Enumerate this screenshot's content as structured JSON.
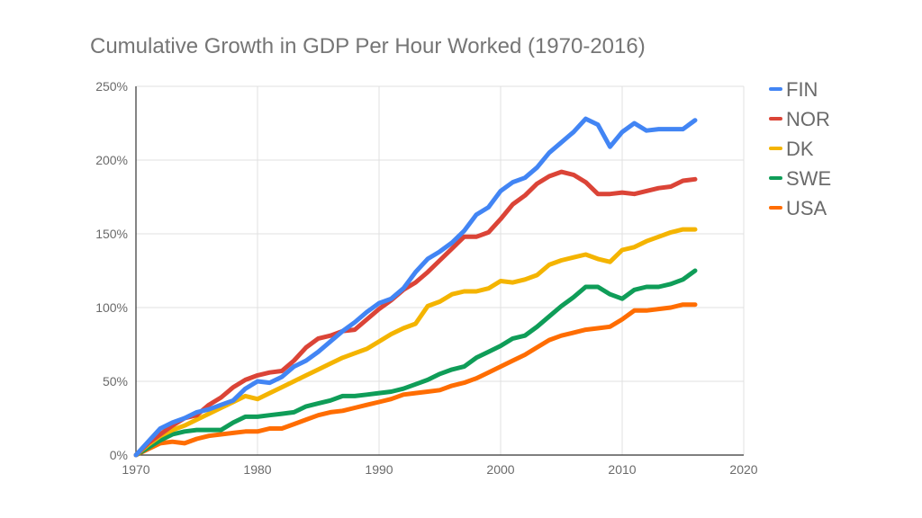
{
  "chart_data": {
    "type": "line",
    "title": "Cumulative Growth in GDP Per Hour Worked (1970-2016)",
    "xlabel": "",
    "ylabel": "",
    "xlim": [
      1970,
      2020
    ],
    "ylim": [
      0,
      250
    ],
    "x_ticks": [
      1970,
      1980,
      1990,
      2000,
      2010,
      2020
    ],
    "y_ticks": [
      0,
      50,
      100,
      150,
      200,
      250
    ],
    "y_tick_labels": [
      "0%",
      "50%",
      "100%",
      "150%",
      "200%",
      "250%"
    ],
    "grid": true,
    "legend_position": "right",
    "x": [
      1970,
      1971,
      1972,
      1973,
      1974,
      1975,
      1976,
      1977,
      1978,
      1979,
      1980,
      1981,
      1982,
      1983,
      1984,
      1985,
      1986,
      1987,
      1988,
      1989,
      1990,
      1991,
      1992,
      1993,
      1994,
      1995,
      1996,
      1997,
      1998,
      1999,
      2000,
      2001,
      2002,
      2003,
      2004,
      2005,
      2006,
      2007,
      2008,
      2009,
      2010,
      2011,
      2012,
      2013,
      2014,
      2015,
      2016
    ],
    "series": [
      {
        "name": "FIN",
        "color": "#4285F4",
        "values": [
          0,
          9,
          18,
          22,
          25,
          29,
          31,
          34,
          37,
          45,
          50,
          49,
          53,
          60,
          64,
          70,
          77,
          84,
          90,
          97,
          103,
          106,
          113,
          124,
          133,
          138,
          144,
          152,
          163,
          168,
          179,
          185,
          188,
          195,
          205,
          212,
          219,
          228,
          224,
          209,
          219,
          225,
          220,
          221,
          221,
          221,
          227
        ]
      },
      {
        "name": "NOR",
        "color": "#DB4437",
        "values": [
          0,
          8,
          14,
          20,
          25,
          27,
          34,
          39,
          46,
          51,
          54,
          56,
          57,
          64,
          73,
          79,
          81,
          84,
          85,
          92,
          99,
          105,
          112,
          117,
          124,
          132,
          140,
          148,
          148,
          151,
          160,
          170,
          176,
          184,
          189,
          192,
          190,
          185,
          177,
          177,
          178,
          177,
          179,
          181,
          182,
          186,
          187
        ]
      },
      {
        "name": "DK",
        "color": "#F4B400",
        "values": [
          0,
          7,
          13,
          17,
          20,
          24,
          28,
          32,
          36,
          40,
          38,
          42,
          46,
          50,
          54,
          58,
          62,
          66,
          69,
          72,
          77,
          82,
          86,
          89,
          101,
          104,
          109,
          111,
          111,
          113,
          118,
          117,
          119,
          122,
          129,
          132,
          134,
          136,
          133,
          131,
          139,
          141,
          145,
          148,
          151,
          153,
          153
        ]
      },
      {
        "name": "SWE",
        "color": "#0F9D58",
        "values": [
          0,
          5,
          10,
          14,
          16,
          17,
          17,
          17,
          22,
          26,
          26,
          27,
          28,
          29,
          33,
          35,
          37,
          40,
          40,
          41,
          42,
          43,
          45,
          48,
          51,
          55,
          58,
          60,
          66,
          70,
          74,
          79,
          81,
          87,
          94,
          101,
          107,
          114,
          114,
          109,
          106,
          112,
          114,
          114,
          116,
          119,
          125
        ]
      },
      {
        "name": "USA",
        "color": "#FF6D01",
        "values": [
          0,
          4,
          8,
          9,
          8,
          11,
          13,
          14,
          15,
          16,
          16,
          18,
          18,
          21,
          24,
          27,
          29,
          30,
          32,
          34,
          36,
          38,
          41,
          42,
          43,
          44,
          47,
          49,
          52,
          56,
          60,
          64,
          68,
          73,
          78,
          81,
          83,
          85,
          86,
          87,
          92,
          98,
          98,
          99,
          100,
          102,
          102
        ]
      }
    ]
  }
}
